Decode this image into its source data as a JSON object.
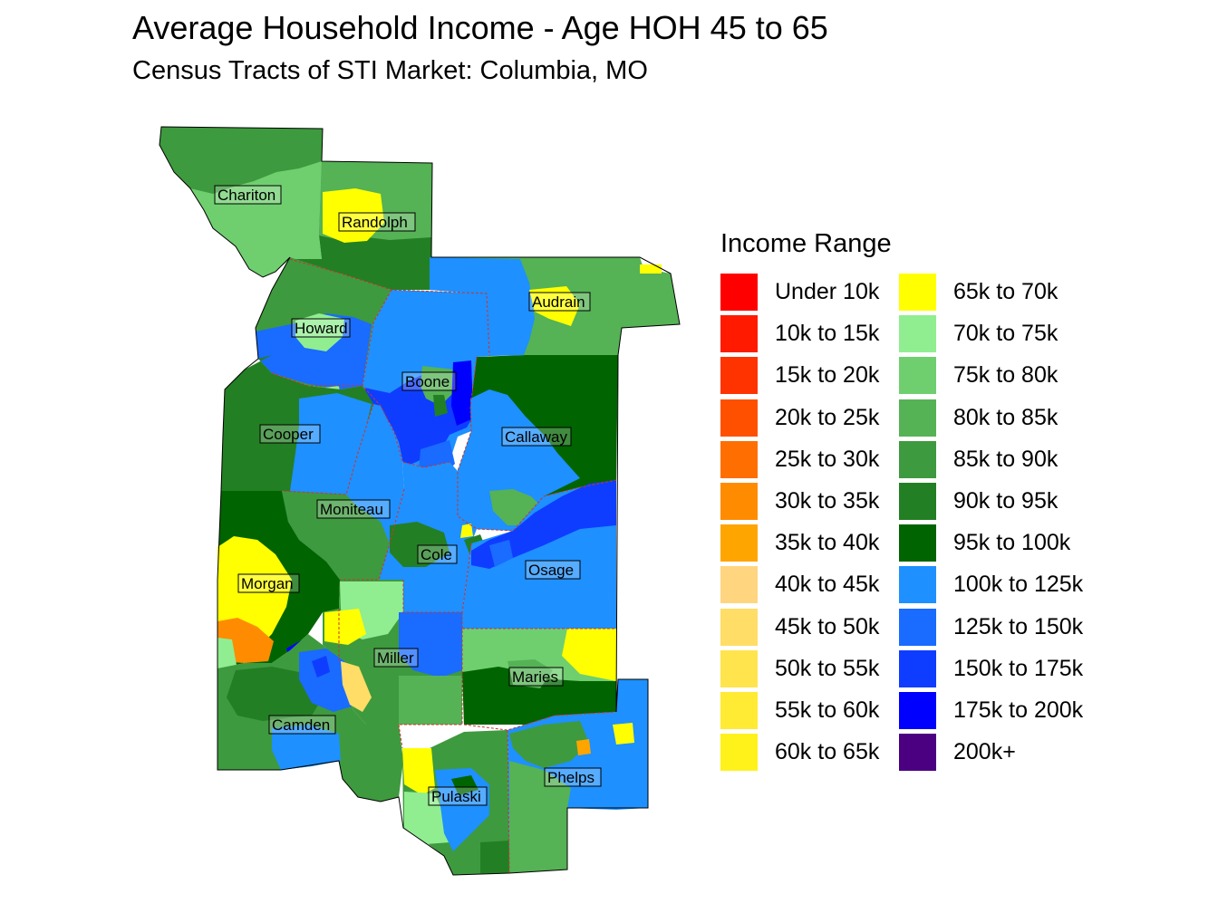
{
  "header": {
    "title": "Average Household Income - Age HOH 45 to 65",
    "subtitle": "Census Tracts of STI Market: Columbia, MO"
  },
  "legend": {
    "title": "Income Range",
    "items": [
      {
        "label": "Under 10k",
        "color": "#FF0000"
      },
      {
        "label": "10k to 15k",
        "color": "#FF1A00"
      },
      {
        "label": "15k to 20k",
        "color": "#FF3300"
      },
      {
        "label": "20k to 25k",
        "color": "#FF5000"
      },
      {
        "label": "25k to 30k",
        "color": "#FF6E00"
      },
      {
        "label": "30k to 35k",
        "color": "#FF8C00"
      },
      {
        "label": "35k to 40k",
        "color": "#FFA500"
      },
      {
        "label": "40k to 45k",
        "color": "#FFD580"
      },
      {
        "label": "45k to 50k",
        "color": "#FFDD66"
      },
      {
        "label": "50k to 55k",
        "color": "#FFE44D"
      },
      {
        "label": "55k to 60k",
        "color": "#FFEB33"
      },
      {
        "label": "60k to 65k",
        "color": "#FFF21A"
      },
      {
        "label": "65k to 70k",
        "color": "#FFFF00"
      },
      {
        "label": "70k to 75k",
        "color": "#90EE90"
      },
      {
        "label": "75k to 80k",
        "color": "#6FCF6F"
      },
      {
        "label": "80k to 85k",
        "color": "#55B255"
      },
      {
        "label": "85k to 90k",
        "color": "#3E9A3E"
      },
      {
        "label": "90k to 95k",
        "color": "#237F23"
      },
      {
        "label": "95k to 100k",
        "color": "#006400"
      },
      {
        "label": "100k to 125k",
        "color": "#1E90FF"
      },
      {
        "label": "125k to 150k",
        "color": "#1A6BFF"
      },
      {
        "label": "150k to 175k",
        "color": "#0F3DFF"
      },
      {
        "label": "175k to 200k",
        "color": "#0000FF"
      },
      {
        "label": "200k+",
        "color": "#4B0082"
      }
    ]
  },
  "counties": [
    {
      "id": "chariton",
      "name": "Chariton"
    },
    {
      "id": "randolph",
      "name": "Randolph"
    },
    {
      "id": "audrain",
      "name": "Audrain"
    },
    {
      "id": "howard",
      "name": "Howard"
    },
    {
      "id": "boone",
      "name": "Boone"
    },
    {
      "id": "cooper",
      "name": "Cooper"
    },
    {
      "id": "callaway",
      "name": "Callaway"
    },
    {
      "id": "moniteau",
      "name": "Moniteau"
    },
    {
      "id": "cole",
      "name": "Cole"
    },
    {
      "id": "osage",
      "name": "Osage"
    },
    {
      "id": "morgan",
      "name": "Morgan"
    },
    {
      "id": "miller",
      "name": "Miller"
    },
    {
      "id": "maries",
      "name": "Maries"
    },
    {
      "id": "camden",
      "name": "Camden"
    },
    {
      "id": "phelps",
      "name": "Phelps"
    },
    {
      "id": "pulaski",
      "name": "Pulaski"
    }
  ]
}
